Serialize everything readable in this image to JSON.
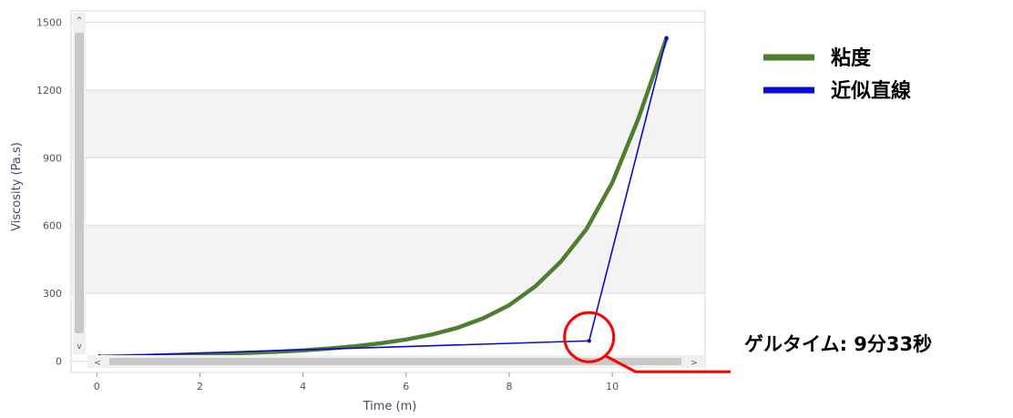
{
  "chart_data": {
    "type": "line",
    "xlabel": "Time (m)",
    "ylabel": "Viscosity (Pa.s)",
    "xlim": [
      -0.5,
      11.8
    ],
    "ylim": [
      -50,
      1550
    ],
    "x_ticks": [
      0,
      2,
      4,
      6,
      8,
      10
    ],
    "y_ticks": [
      0,
      300,
      600,
      900,
      1200,
      1500
    ],
    "grid": true,
    "legend_position": "right",
    "series": [
      {
        "name": "粘度",
        "color": "#4f7f2e",
        "x": [
          0.0,
          0.05,
          0.1,
          0.5,
          1.0,
          1.5,
          2.0,
          2.5,
          3.0,
          3.5,
          4.0,
          4.5,
          5.0,
          5.5,
          6.0,
          6.5,
          7.0,
          7.5,
          8.0,
          8.5,
          9.0,
          9.5,
          10.0,
          10.5,
          11.05
        ],
        "y": [
          0,
          12,
          20,
          22,
          24,
          27,
          30,
          33,
          37,
          42,
          48,
          56,
          66,
          79,
          96,
          118,
          148,
          190,
          248,
          330,
          440,
          585,
          790,
          1070,
          1430
        ]
      },
      {
        "name": "近似直線",
        "color": "#0a0ad2",
        "x": [
          0.0,
          0.05,
          9.55,
          11.05
        ],
        "y": [
          0,
          22,
          90,
          1430
        ]
      }
    ],
    "annotations": [
      {
        "text": "ゲルタイム: 9分33秒",
        "x": 9.55,
        "y": 90
      }
    ]
  },
  "colors": {
    "highlight": "#ff0000",
    "band": "#f3f3f3",
    "scrollbar": "#c8c8c8"
  },
  "scrollbar_glyphs": {
    "up": "^",
    "down": "v",
    "left": "<",
    "right": ">"
  }
}
